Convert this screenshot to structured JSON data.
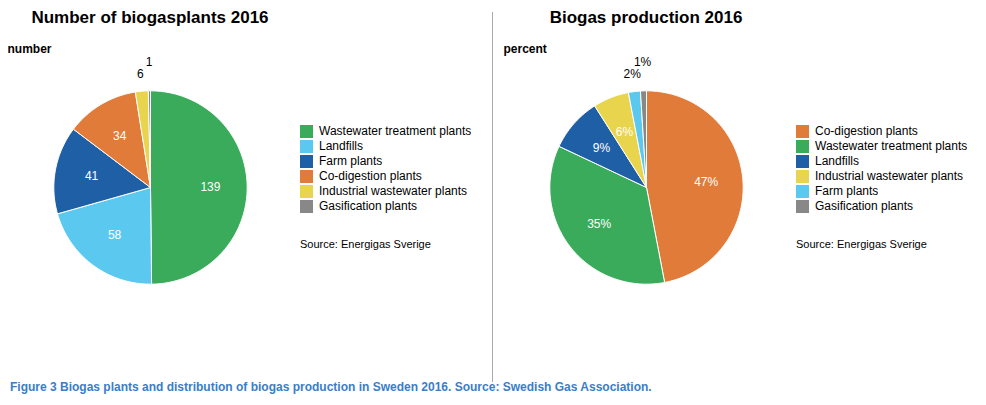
{
  "chart_data": [
    {
      "type": "pie",
      "title": "Number of biogasplants 2016",
      "categories": [
        "Wastewater treatment plants",
        "Landfills",
        "Farm plants",
        "Co-digestion plants",
        "Industrial wastewater plants",
        "Gasification plants"
      ],
      "values": [
        139,
        58,
        41,
        34,
        6,
        1
      ],
      "colors": [
        "#3aaa5b",
        "#5bc8f0",
        "#1f5fa6",
        "#e07b3a",
        "#e8d44d",
        "#888888"
      ],
      "data_labels": true,
      "legend": "right",
      "annotations": [
        "number",
        "Source: Energigas Sverige"
      ]
    },
    {
      "type": "pie",
      "title": "Biogas production 2016",
      "categories": [
        "Co-digestion plants",
        "Wastewater treatment plants",
        "Landfills",
        "Industrial wastewater plants",
        "Farm plants",
        "Gasification plants"
      ],
      "values": [
        47,
        35,
        9,
        6,
        2,
        1
      ],
      "value_labels": [
        "47%",
        "35%",
        "9%",
        "6%",
        "2%",
        "1%"
      ],
      "colors": [
        "#e07b3a",
        "#3aaa5b",
        "#1f5fa6",
        "#e8d44d",
        "#5bc8f0",
        "#888888"
      ],
      "data_labels": true,
      "legend": "right",
      "annotations": [
        "percent",
        "Source: Energigas Sverige"
      ]
    }
  ],
  "caption": {
    "text": "Figure 3 Biogas plants and distribution of biogas production in Sweden 2016. Source: Swedish Gas Association.",
    "color": "#3a7dc9"
  }
}
